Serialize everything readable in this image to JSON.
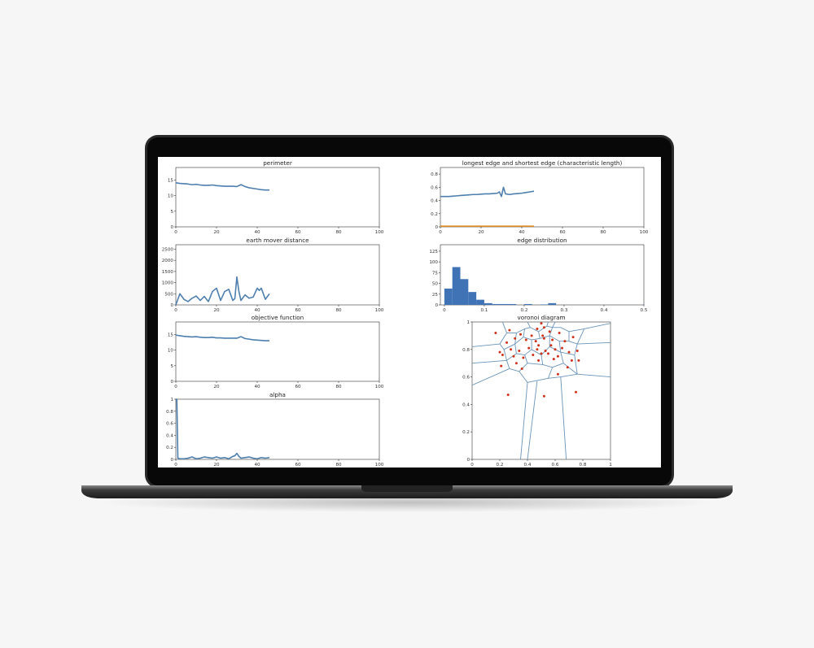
{
  "colors": {
    "series_blue": "#4e7fae",
    "series_orange": "#e08a22",
    "hist_fill": "#3f73b5",
    "points": "#d0311b",
    "voronoi_edges": "#6b94b8",
    "bezel": "#0a0a0a",
    "chassis": "#3b3b3b"
  },
  "chart_data": [
    {
      "id": "perimeter",
      "type": "line",
      "title": "perimeter",
      "xlim": [
        0,
        100
      ],
      "ylim": [
        0,
        19
      ],
      "xticks": [
        0,
        20,
        40,
        60,
        80,
        100
      ],
      "yticks": [
        0,
        5,
        10,
        15
      ],
      "series": [
        {
          "x": [
            0,
            2,
            4,
            6,
            8,
            10,
            12,
            14,
            16,
            18,
            20,
            22,
            24,
            26,
            28,
            30,
            32,
            34,
            36,
            38,
            40,
            42,
            44,
            46
          ],
          "y": [
            14.1,
            13.9,
            13.8,
            13.7,
            13.5,
            13.6,
            13.4,
            13.3,
            13.3,
            13.4,
            13.2,
            13.1,
            13.0,
            13.0,
            13.0,
            12.9,
            13.5,
            12.9,
            12.5,
            12.3,
            12.1,
            11.9,
            11.8,
            11.8
          ]
        }
      ]
    },
    {
      "id": "edges",
      "type": "line",
      "title": "longest edge and shortest edge (characteristic length)",
      "xlim": [
        0,
        100
      ],
      "ylim": [
        0,
        0.9
      ],
      "xticks": [
        0,
        20,
        40,
        60,
        80,
        100
      ],
      "yticks": [
        0.0,
        0.2,
        0.4,
        0.6,
        0.8
      ],
      "series": [
        {
          "x": [
            0,
            2,
            4,
            6,
            8,
            10,
            12,
            14,
            16,
            18,
            20,
            22,
            24,
            26,
            28,
            29,
            30,
            31,
            32,
            34,
            36,
            38,
            40,
            42,
            44,
            46
          ],
          "y": [
            0.46,
            0.46,
            0.46,
            0.465,
            0.47,
            0.475,
            0.48,
            0.485,
            0.49,
            0.49,
            0.495,
            0.5,
            0.5,
            0.505,
            0.51,
            0.53,
            0.46,
            0.6,
            0.5,
            0.49,
            0.5,
            0.505,
            0.51,
            0.52,
            0.53,
            0.54
          ]
        },
        {
          "x": [
            0,
            46
          ],
          "y": [
            0.01,
            0.01
          ]
        }
      ]
    },
    {
      "id": "emd",
      "type": "line",
      "title": "earth mover distance",
      "xlim": [
        0,
        100
      ],
      "ylim": [
        0,
        2700
      ],
      "xticks": [
        0,
        20,
        40,
        60,
        80,
        100
      ],
      "yticks": [
        0,
        500,
        1000,
        1500,
        2000,
        2500
      ],
      "series": [
        {
          "x": [
            0,
            2,
            4,
            6,
            8,
            10,
            12,
            14,
            16,
            18,
            20,
            22,
            24,
            26,
            28,
            29,
            30,
            31,
            32,
            34,
            36,
            38,
            40,
            41,
            42,
            44,
            46
          ],
          "y": [
            0,
            500,
            250,
            150,
            300,
            400,
            200,
            380,
            150,
            600,
            750,
            200,
            600,
            700,
            200,
            280,
            1250,
            600,
            200,
            450,
            300,
            350,
            750,
            650,
            750,
            250,
            500
          ]
        }
      ]
    },
    {
      "id": "edge_dist",
      "type": "bar",
      "title": "edge distribution",
      "xlim": [
        -0.01,
        0.5
      ],
      "ylim": [
        0,
        140
      ],
      "xticks": [
        0.0,
        0.1,
        0.2,
        0.3,
        0.4,
        0.5
      ],
      "yticks": [
        0,
        25,
        50,
        75,
        100,
        125
      ],
      "bin_width": 0.02,
      "bin_starts": [
        0.0,
        0.02,
        0.04,
        0.06,
        0.08,
        0.1,
        0.12,
        0.14,
        0.16,
        0.2,
        0.24,
        0.26,
        0.5
      ],
      "values": [
        38,
        88,
        60,
        30,
        12,
        4,
        2,
        2,
        2,
        2,
        1,
        4,
        2
      ]
    },
    {
      "id": "objective",
      "type": "line",
      "title": "objective function",
      "xlim": [
        0,
        100
      ],
      "ylim": [
        0,
        19
      ],
      "xticks": [
        0,
        20,
        40,
        60,
        80,
        100
      ],
      "yticks": [
        0,
        5,
        10,
        15
      ],
      "series": [
        {
          "x": [
            0,
            2,
            4,
            6,
            8,
            10,
            12,
            14,
            16,
            18,
            20,
            22,
            24,
            26,
            28,
            30,
            32,
            34,
            36,
            38,
            40,
            42,
            44,
            46
          ],
          "y": [
            14.8,
            14.6,
            14.4,
            14.3,
            14.2,
            14.3,
            14.1,
            14.0,
            14.0,
            14.1,
            13.9,
            13.9,
            13.8,
            13.8,
            13.8,
            13.8,
            14.3,
            13.7,
            13.5,
            13.3,
            13.2,
            13.1,
            13.0,
            13.0
          ]
        }
      ]
    },
    {
      "id": "alpha",
      "type": "line",
      "title": "alpha",
      "xlim": [
        0,
        100
      ],
      "ylim": [
        0,
        1.0
      ],
      "xticks": [
        0,
        20,
        40,
        60,
        80,
        100
      ],
      "yticks": [
        0.0,
        0.2,
        0.4,
        0.6,
        0.8,
        1.0
      ],
      "series": [
        {
          "x": [
            0,
            0.5,
            1,
            2,
            4,
            6,
            8,
            10,
            12,
            14,
            16,
            18,
            20,
            22,
            24,
            26,
            28,
            29,
            30,
            31,
            32,
            34,
            36,
            38,
            40,
            42,
            44,
            46
          ],
          "y": [
            1.0,
            1.0,
            0.02,
            0.01,
            0.01,
            0.02,
            0.04,
            0.01,
            0.02,
            0.04,
            0.03,
            0.02,
            0.04,
            0.02,
            0.03,
            0.01,
            0.05,
            0.06,
            0.1,
            0.05,
            0.02,
            0.03,
            0.04,
            0.02,
            0.01,
            0.03,
            0.02,
            0.03
          ]
        }
      ]
    },
    {
      "id": "voronoi",
      "type": "scatter",
      "title": "voronoi diagram",
      "xlim": [
        0,
        1
      ],
      "ylim": [
        0,
        1
      ],
      "xticks": [
        0.0,
        0.2,
        0.4,
        0.6,
        0.8,
        1.0
      ],
      "yticks": [
        0.0,
        0.2,
        0.4,
        0.6,
        0.8,
        1.0
      ],
      "x": [
        0.5,
        0.47,
        0.52,
        0.27,
        0.35,
        0.43,
        0.51,
        0.56,
        0.63,
        0.17,
        0.25,
        0.31,
        0.39,
        0.46,
        0.52,
        0.58,
        0.67,
        0.73,
        0.2,
        0.28,
        0.34,
        0.41,
        0.47,
        0.53,
        0.6,
        0.65,
        0.7,
        0.76,
        0.21,
        0.3,
        0.37,
        0.44,
        0.5,
        0.55,
        0.62,
        0.72,
        0.22,
        0.36,
        0.48,
        0.59,
        0.77,
        0.62,
        0.26,
        0.52,
        0.75,
        0.48,
        0.57,
        0.32,
        0.69
      ],
      "y": [
        0.99,
        0.95,
        0.96,
        0.94,
        0.91,
        0.9,
        0.9,
        0.93,
        0.92,
        0.92,
        0.85,
        0.88,
        0.87,
        0.86,
        0.88,
        0.87,
        0.86,
        0.89,
        0.78,
        0.8,
        0.79,
        0.81,
        0.8,
        0.79,
        0.8,
        0.81,
        0.78,
        0.79,
        0.68,
        0.75,
        0.74,
        0.76,
        0.77,
        0.77,
        0.75,
        0.72,
        0.76,
        0.66,
        0.72,
        0.73,
        0.72,
        0.62,
        0.47,
        0.46,
        0.49,
        0.83,
        0.83,
        0.7,
        0.67
      ],
      "voronoi_segments": [
        [
          [
            0.4,
            1.0
          ],
          [
            0.42,
            0.96
          ]
        ],
        [
          [
            0.55,
            1.0
          ],
          [
            0.54,
            0.97
          ]
        ],
        [
          [
            0.6,
            1.0
          ],
          [
            0.58,
            0.96
          ]
        ],
        [
          [
            0.22,
            1.0
          ],
          [
            0.25,
            0.92
          ]
        ],
        [
          [
            0.25,
            0.92
          ],
          [
            0.32,
            0.92
          ]
        ],
        [
          [
            0.32,
            0.92
          ],
          [
            0.38,
            0.95
          ]
        ],
        [
          [
            0.38,
            0.95
          ],
          [
            0.42,
            0.96
          ]
        ],
        [
          [
            0.42,
            0.96
          ],
          [
            0.48,
            0.93
          ]
        ],
        [
          [
            0.48,
            0.93
          ],
          [
            0.54,
            0.97
          ]
        ],
        [
          [
            0.54,
            0.97
          ],
          [
            0.58,
            0.96
          ]
        ],
        [
          [
            0.58,
            0.96
          ],
          [
            0.64,
            0.96
          ]
        ],
        [
          [
            0.64,
            0.96
          ],
          [
            0.7,
            0.93
          ]
        ],
        [
          [
            0.7,
            0.93
          ],
          [
            0.81,
            0.95
          ]
        ],
        [
          [
            0.81,
            0.95
          ],
          [
            1.0,
            0.99
          ]
        ],
        [
          [
            0.0,
            0.82
          ],
          [
            0.2,
            0.84
          ]
        ],
        [
          [
            0.2,
            0.84
          ],
          [
            0.25,
            0.92
          ]
        ],
        [
          [
            0.2,
            0.84
          ],
          [
            0.23,
            0.8
          ]
        ],
        [
          [
            0.32,
            0.92
          ],
          [
            0.31,
            0.84
          ]
        ],
        [
          [
            0.38,
            0.95
          ],
          [
            0.37,
            0.89
          ]
        ],
        [
          [
            0.48,
            0.93
          ],
          [
            0.49,
            0.88
          ]
        ],
        [
          [
            0.58,
            0.96
          ],
          [
            0.56,
            0.9
          ]
        ],
        [
          [
            0.7,
            0.93
          ],
          [
            0.7,
            0.86
          ]
        ],
        [
          [
            0.23,
            0.8
          ],
          [
            0.31,
            0.84
          ]
        ],
        [
          [
            0.31,
            0.84
          ],
          [
            0.37,
            0.89
          ]
        ],
        [
          [
            0.37,
            0.89
          ],
          [
            0.43,
            0.87
          ]
        ],
        [
          [
            0.43,
            0.87
          ],
          [
            0.49,
            0.88
          ]
        ],
        [
          [
            0.49,
            0.88
          ],
          [
            0.56,
            0.9
          ]
        ],
        [
          [
            0.56,
            0.9
          ],
          [
            0.63,
            0.86
          ]
        ],
        [
          [
            0.63,
            0.86
          ],
          [
            0.7,
            0.86
          ]
        ],
        [
          [
            0.7,
            0.86
          ],
          [
            0.76,
            0.84
          ]
        ],
        [
          [
            0.76,
            0.84
          ],
          [
            1.0,
            0.85
          ]
        ],
        [
          [
            0.81,
            0.95
          ],
          [
            0.76,
            0.84
          ]
        ],
        [
          [
            0.23,
            0.8
          ],
          [
            0.25,
            0.72
          ]
        ],
        [
          [
            0.31,
            0.84
          ],
          [
            0.32,
            0.77
          ]
        ],
        [
          [
            0.43,
            0.87
          ],
          [
            0.43,
            0.8
          ]
        ],
        [
          [
            0.56,
            0.9
          ],
          [
            0.56,
            0.82
          ]
        ],
        [
          [
            0.63,
            0.86
          ],
          [
            0.64,
            0.78
          ]
        ],
        [
          [
            0.76,
            0.84
          ],
          [
            0.74,
            0.76
          ]
        ],
        [
          [
            0.25,
            0.72
          ],
          [
            0.32,
            0.77
          ]
        ],
        [
          [
            0.32,
            0.77
          ],
          [
            0.38,
            0.76
          ]
        ],
        [
          [
            0.38,
            0.76
          ],
          [
            0.43,
            0.8
          ]
        ],
        [
          [
            0.43,
            0.8
          ],
          [
            0.5,
            0.76
          ]
        ],
        [
          [
            0.5,
            0.76
          ],
          [
            0.56,
            0.82
          ]
        ],
        [
          [
            0.56,
            0.82
          ],
          [
            0.64,
            0.78
          ]
        ],
        [
          [
            0.64,
            0.78
          ],
          [
            0.74,
            0.76
          ]
        ],
        [
          [
            0.0,
            0.7
          ],
          [
            0.25,
            0.72
          ]
        ],
        [
          [
            0.25,
            0.72
          ],
          [
            0.27,
            0.66
          ]
        ],
        [
          [
            0.38,
            0.76
          ],
          [
            0.4,
            0.7
          ]
        ],
        [
          [
            0.5,
            0.76
          ],
          [
            0.51,
            0.69
          ]
        ],
        [
          [
            0.64,
            0.78
          ],
          [
            0.66,
            0.7
          ]
        ],
        [
          [
            0.74,
            0.76
          ],
          [
            0.76,
            0.62
          ]
        ],
        [
          [
            0.27,
            0.66
          ],
          [
            0.34,
            0.64
          ]
        ],
        [
          [
            0.34,
            0.64
          ],
          [
            0.4,
            0.7
          ]
        ],
        [
          [
            0.4,
            0.7
          ],
          [
            0.51,
            0.69
          ]
        ],
        [
          [
            0.51,
            0.69
          ],
          [
            0.58,
            0.67
          ]
        ],
        [
          [
            0.58,
            0.67
          ],
          [
            0.66,
            0.7
          ]
        ],
        [
          [
            0.66,
            0.7
          ],
          [
            0.76,
            0.62
          ]
        ],
        [
          [
            0.76,
            0.62
          ],
          [
            1.0,
            0.6
          ]
        ],
        [
          [
            0.27,
            0.66
          ],
          [
            0.0,
            0.54
          ]
        ],
        [
          [
            0.34,
            0.64
          ],
          [
            0.4,
            0.56
          ]
        ],
        [
          [
            0.58,
            0.67
          ],
          [
            0.55,
            0.59
          ]
        ],
        [
          [
            0.4,
            0.56
          ],
          [
            0.55,
            0.59
          ]
        ],
        [
          [
            0.55,
            0.59
          ],
          [
            0.64,
            0.6
          ]
        ],
        [
          [
            0.64,
            0.6
          ],
          [
            0.76,
            0.62
          ]
        ],
        [
          [
            0.4,
            0.56
          ],
          [
            0.35,
            0.0
          ]
        ],
        [
          [
            0.47,
            0.57
          ],
          [
            0.4,
            0.0
          ]
        ],
        [
          [
            0.64,
            0.6
          ],
          [
            0.68,
            0.0
          ]
        ]
      ]
    }
  ]
}
